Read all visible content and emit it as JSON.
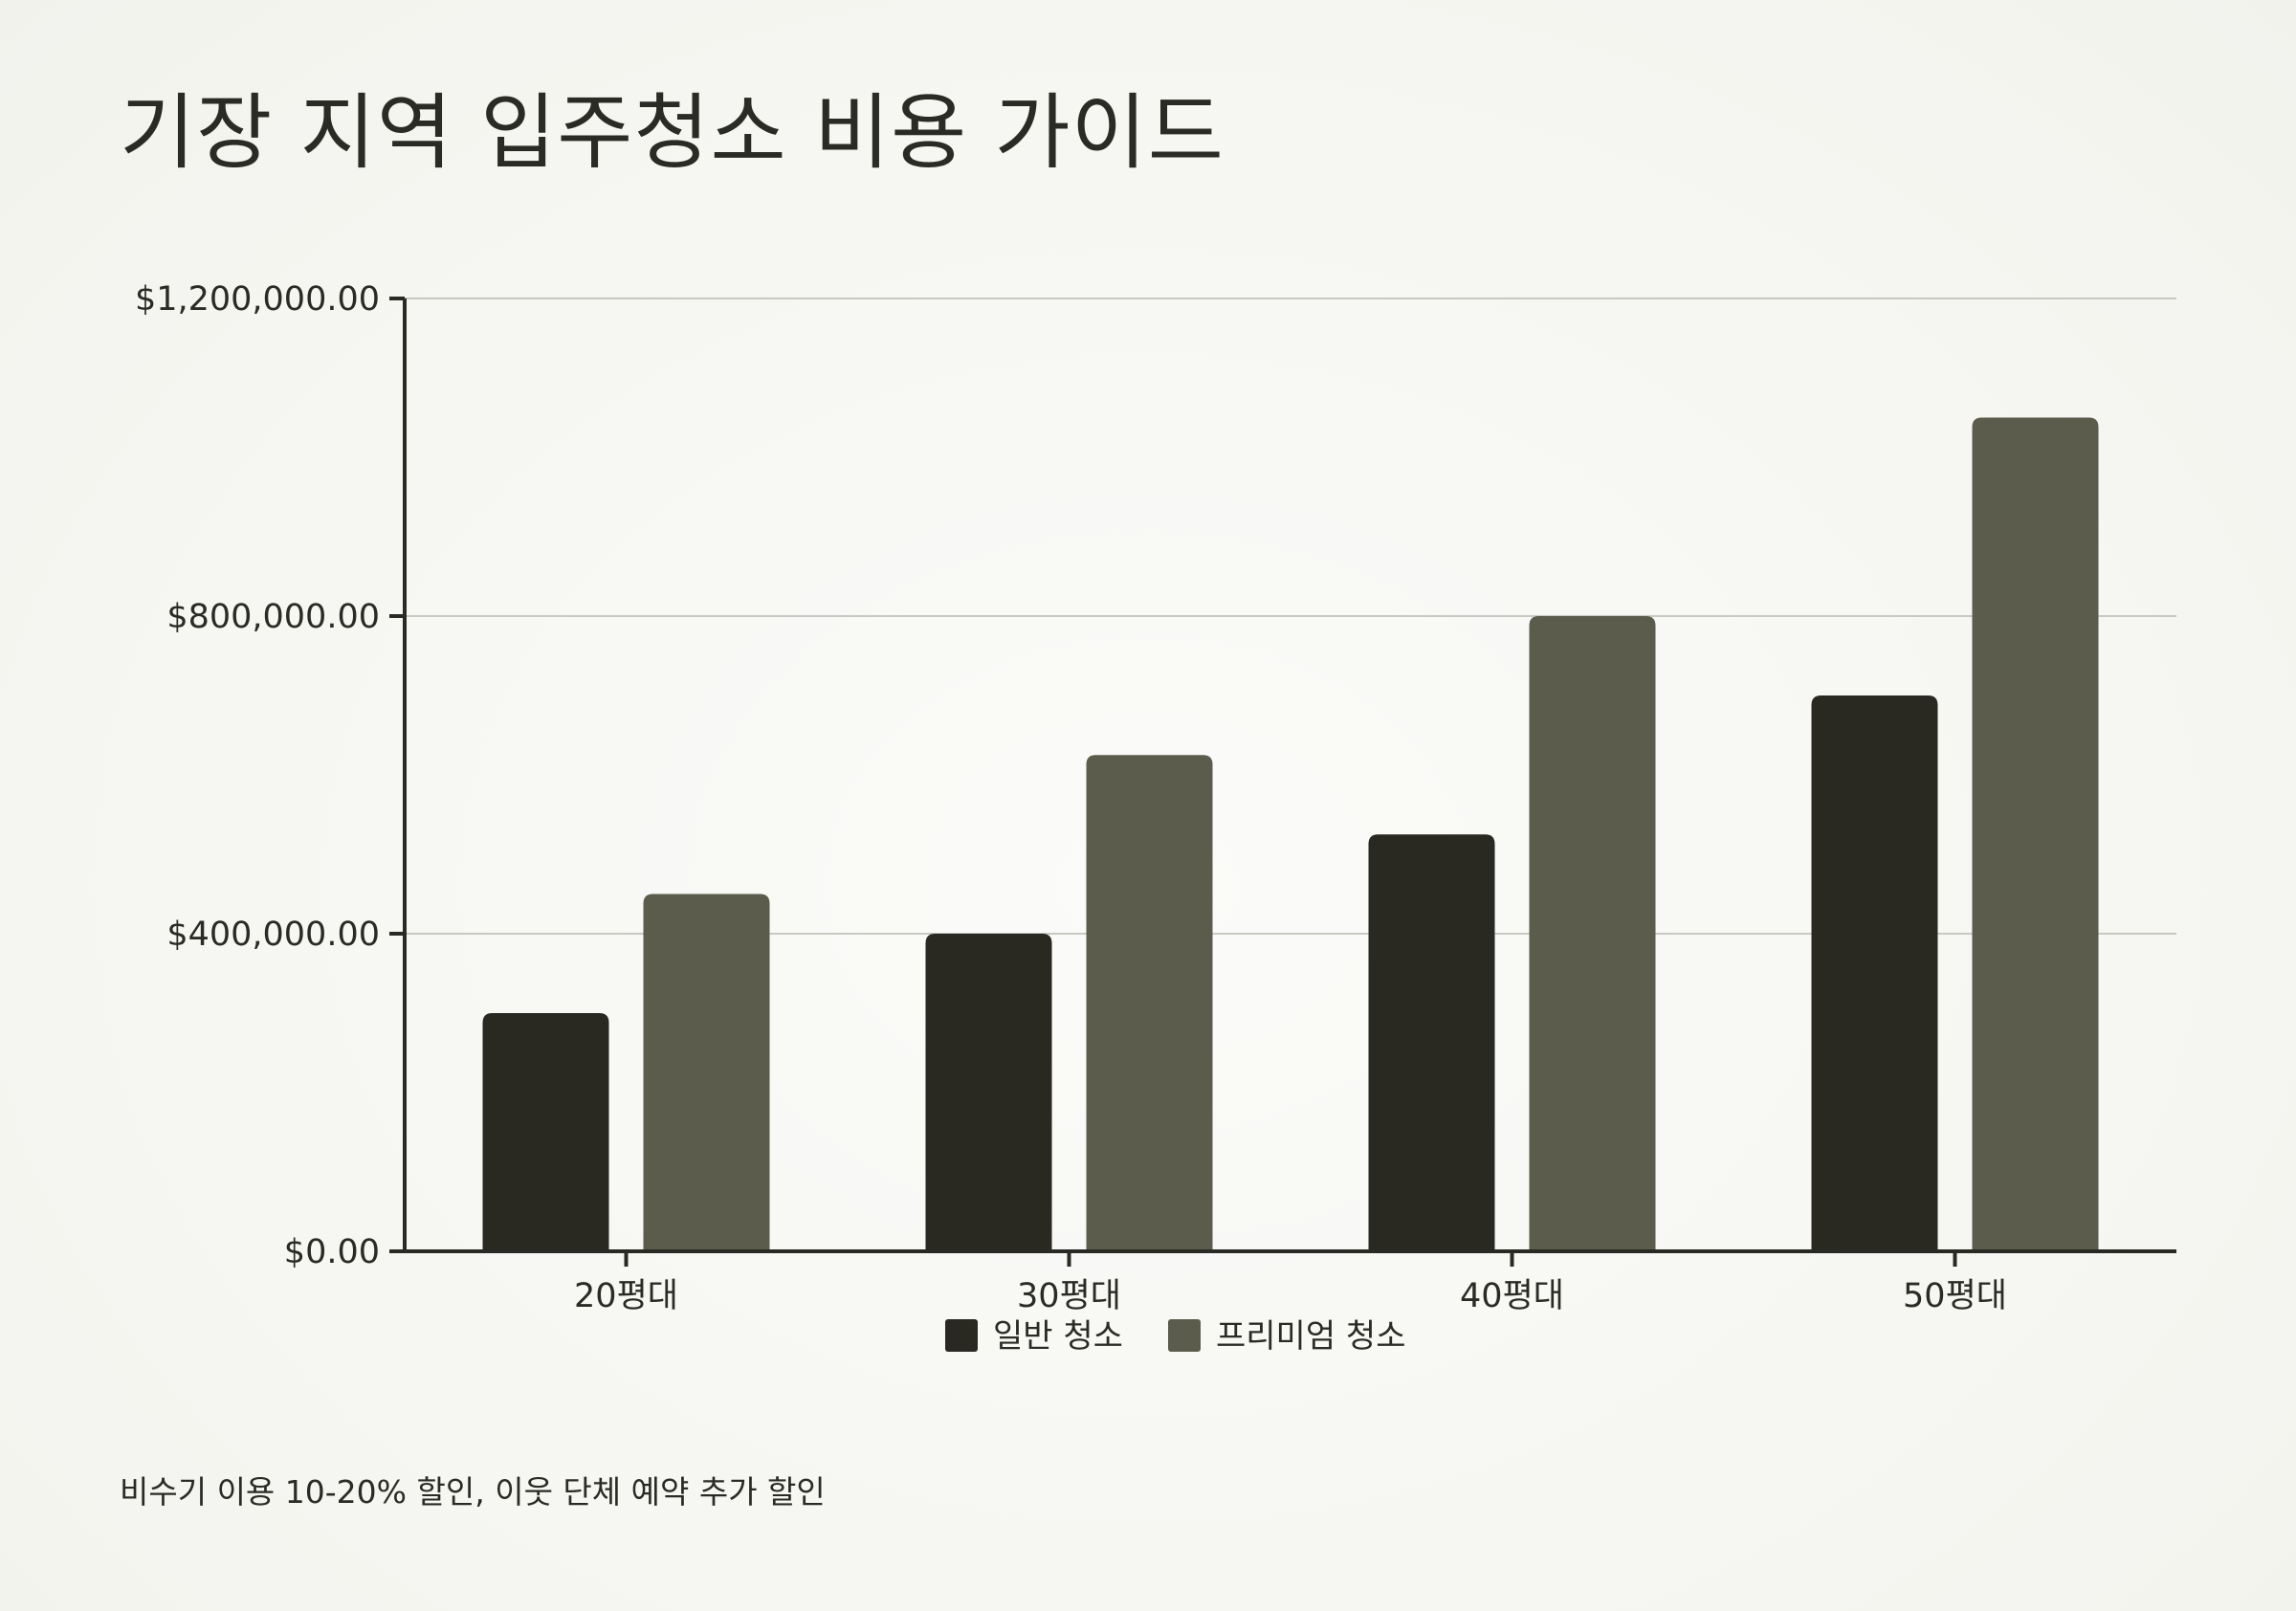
{
  "title": "기장 지역 입주청소 비용 가이드",
  "footnote": "비수기 이용 10-20% 할인, 이웃 단체 예약 추가 할인",
  "colors": {
    "background": "#f6f5f1",
    "text": "#2b2b26",
    "axis": "#2a2a24",
    "grid": "#c9c9c3"
  },
  "chart_data": {
    "type": "bar",
    "categories": [
      "20평대",
      "30평대",
      "40평대",
      "50평대"
    ],
    "series": [
      {
        "name": "일반 청소",
        "color": "#292922",
        "values": [
          300000,
          400000,
          525000,
          700000
        ]
      },
      {
        "name": "프리미엄 청소",
        "color": "#5c5c4d",
        "values": [
          450000,
          625000,
          800000,
          1050000
        ]
      }
    ],
    "ylim": [
      0,
      1200000
    ],
    "yticks": [
      0,
      400000,
      800000,
      1200000
    ],
    "ytick_labels": [
      "$0.00",
      "$400,000.00",
      "$800,000.00",
      "$1,200,000.00"
    ],
    "grid": true,
    "legend_position": "bottom-center",
    "xlabel": "",
    "ylabel": ""
  }
}
